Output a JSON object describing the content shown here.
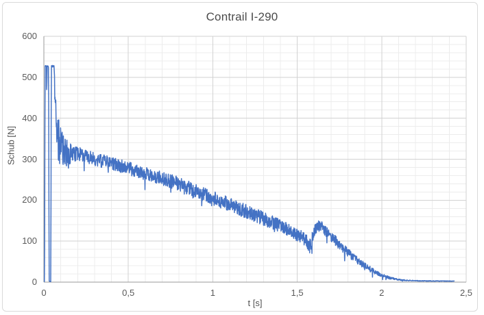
{
  "chart_data": {
    "type": "line",
    "title": "Contrail I-290",
    "xlabel": "t [s]",
    "ylabel": "Schub [N]",
    "xlim": [
      0,
      2.5
    ],
    "ylim": [
      0,
      600
    ],
    "x_ticks": [
      {
        "v": 0,
        "label": "0"
      },
      {
        "v": 0.5,
        "label": "0,5"
      },
      {
        "v": 1,
        "label": "1"
      },
      {
        "v": 1.5,
        "label": "1,5"
      },
      {
        "v": 2,
        "label": "2"
      },
      {
        "v": 2.5,
        "label": "2,5"
      }
    ],
    "y_ticks": [
      {
        "v": 0,
        "label": "0"
      },
      {
        "v": 100,
        "label": "100"
      },
      {
        "v": 200,
        "label": "200"
      },
      {
        "v": 300,
        "label": "300"
      },
      {
        "v": 400,
        "label": "400"
      },
      {
        "v": 500,
        "label": "500"
      },
      {
        "v": 600,
        "label": "600"
      }
    ],
    "x_minor_step": 0.1,
    "y_minor_step": 20,
    "grid": {
      "major_color": "#D2D2D2",
      "minor_color": "#ECECEC",
      "axis_color": "#9A9A9A"
    },
    "series": [
      {
        "name": "Schub",
        "color": "#4472C4",
        "stroke_width": 1.5,
        "sample_dt": 0.0015,
        "noise_seed": 12345,
        "spike_chance": 0.03,
        "spike_scale": 1.9,
        "t_end": 2.43,
        "envelope": [
          [
            0.0,
            1,
            0.5
          ],
          [
            0.004,
            2,
            1
          ],
          [
            0.007,
            527,
            2
          ],
          [
            0.015,
            527,
            2
          ],
          [
            0.017,
            448,
            4
          ],
          [
            0.019,
            527,
            2
          ],
          [
            0.028,
            527,
            2
          ],
          [
            0.031,
            2,
            1
          ],
          [
            0.041,
            2,
            1
          ],
          [
            0.044,
            527,
            2
          ],
          [
            0.061,
            527,
            2
          ],
          [
            0.066,
            440,
            28
          ],
          [
            0.075,
            392,
            45
          ],
          [
            0.085,
            352,
            55
          ],
          [
            0.1,
            330,
            48
          ],
          [
            0.12,
            318,
            40
          ],
          [
            0.15,
            312,
            28
          ],
          [
            0.2,
            312,
            18
          ],
          [
            0.3,
            300,
            16
          ],
          [
            0.4,
            290,
            16
          ],
          [
            0.5,
            278,
            16
          ],
          [
            0.6,
            265,
            16
          ],
          [
            0.7,
            253,
            17
          ],
          [
            0.8,
            240,
            17
          ],
          [
            0.9,
            223,
            17
          ],
          [
            1.0,
            205,
            17
          ],
          [
            1.1,
            190,
            17
          ],
          [
            1.2,
            172,
            17
          ],
          [
            1.3,
            155,
            17
          ],
          [
            1.4,
            138,
            16
          ],
          [
            1.5,
            115,
            16
          ],
          [
            1.55,
            104,
            16
          ],
          [
            1.575,
            92,
            22
          ],
          [
            1.6,
            126,
            16
          ],
          [
            1.63,
            138,
            14
          ],
          [
            1.66,
            130,
            14
          ],
          [
            1.7,
            110,
            13
          ],
          [
            1.75,
            92,
            12
          ],
          [
            1.8,
            72,
            11
          ],
          [
            1.85,
            55,
            9
          ],
          [
            1.9,
            40,
            8
          ],
          [
            1.95,
            27,
            6
          ],
          [
            2.0,
            17,
            4
          ],
          [
            2.05,
            10,
            3
          ],
          [
            2.1,
            6,
            2
          ],
          [
            2.15,
            4,
            1.2
          ],
          [
            2.25,
            3,
            0.8
          ],
          [
            2.43,
            2.5,
            0.6
          ]
        ]
      }
    ]
  },
  "frame": {
    "border_color": "#D9D9D9"
  }
}
